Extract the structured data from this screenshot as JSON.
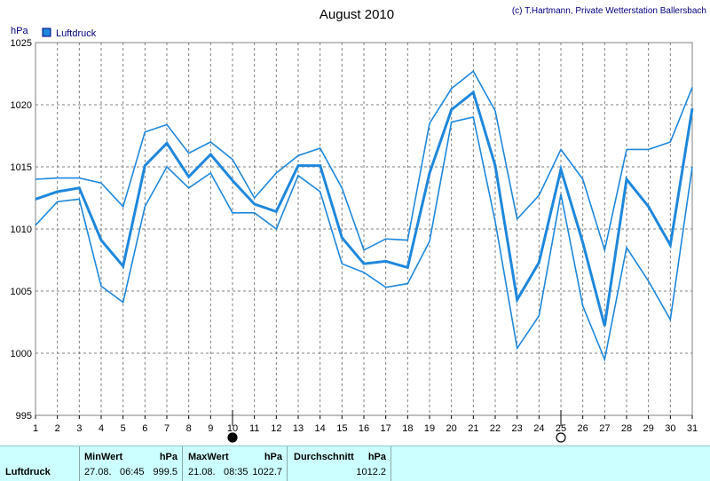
{
  "chart_data": {
    "type": "line",
    "title": "August 2010",
    "credit": "(c) T.Hartmann, Private Wetterstation Ballersbach",
    "ylabel": "hPa",
    "ylim": [
      995,
      1025
    ],
    "yticks": [
      "995",
      "1000",
      "1005",
      "1010",
      "1015",
      "1020",
      "1025"
    ],
    "x": [
      "1",
      "2",
      "3",
      "4",
      "5",
      "6",
      "7",
      "8",
      "9",
      "10",
      "11",
      "12",
      "13",
      "14",
      "15",
      "16",
      "17",
      "18",
      "19",
      "20",
      "21",
      "22",
      "23",
      "24",
      "25",
      "26",
      "27",
      "28",
      "29",
      "30",
      "31"
    ],
    "legend": "Luftdruck",
    "colors": {
      "line": "#1e87dc",
      "legend_box": "#1e87dc",
      "grid": "#808080"
    },
    "series": [
      {
        "role": "max",
        "values": [
          1014.0,
          1014.1,
          1014.1,
          1013.7,
          1011.8,
          1017.8,
          1018.4,
          1016.1,
          1017.0,
          1015.6,
          1012.5,
          1014.5,
          1015.9,
          1016.5,
          1013.3,
          1008.3,
          1009.2,
          1009.1,
          1018.5,
          1021.3,
          1022.7,
          1019.5,
          1010.8,
          1012.7,
          1016.4,
          1014.0,
          1008.3,
          1016.4,
          1016.4,
          1017.0,
          1021.4
        ]
      },
      {
        "role": "avg",
        "values": [
          1012.4,
          1013.0,
          1013.3,
          1009.1,
          1007.0,
          1015.1,
          1016.9,
          1014.2,
          1016.0,
          1013.9,
          1012.0,
          1011.4,
          1015.1,
          1015.1,
          1009.3,
          1007.2,
          1007.4,
          1006.9,
          1014.5,
          1019.6,
          1021.0,
          1015.1,
          1004.3,
          1007.3,
          1014.8,
          1008.9,
          1002.2,
          1014.0,
          1011.8,
          1008.7,
          1019.7
        ]
      },
      {
        "role": "min",
        "values": [
          1010.3,
          1012.2,
          1012.4,
          1005.4,
          1004.1,
          1011.8,
          1015.0,
          1013.3,
          1014.5,
          1011.3,
          1011.3,
          1010.0,
          1014.3,
          1013.0,
          1007.2,
          1006.5,
          1005.3,
          1005.6,
          1009.0,
          1018.6,
          1019.0,
          1010.6,
          1000.4,
          1003.0,
          1012.8,
          1003.8,
          999.5,
          1008.5,
          1005.8,
          1002.7,
          1015.0
        ]
      }
    ],
    "moon_markers": [
      {
        "day": 10,
        "phase": "new-moon"
      },
      {
        "day": 25,
        "phase": "full-moon"
      }
    ]
  },
  "stats": {
    "row_label": "Luftdruck",
    "min": {
      "header": "MinWert",
      "unit": "hPa",
      "date": "27.08.",
      "time": "06:45",
      "value": "999.5"
    },
    "max": {
      "header": "MaxWert",
      "unit": "hPa",
      "date": "21.08.",
      "time": "08:35",
      "value": "1022.7"
    },
    "avg": {
      "header": "Durchschnitt",
      "unit": "hPa",
      "value": "1012.2"
    }
  }
}
